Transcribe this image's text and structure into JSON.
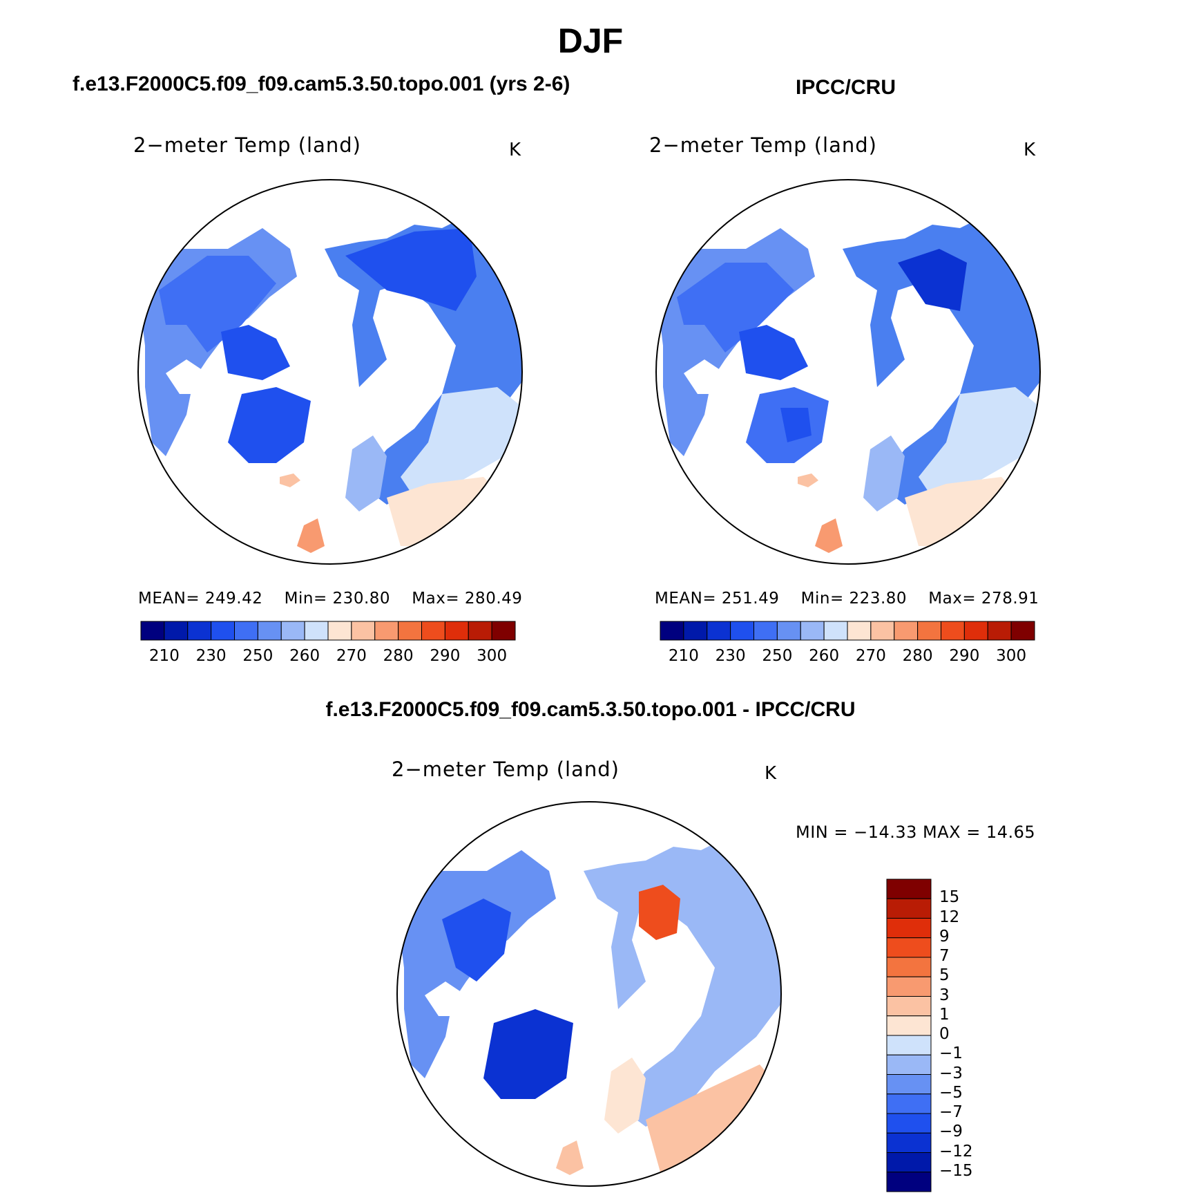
{
  "header": {
    "season": "DJF",
    "left_panel_title": "f.e13.F2000C5.f09_f09.cam5.3.50.topo.001 (yrs 2-6)",
    "right_panel_title": "IPCC/CRU",
    "diff_panel_title": "f.e13.F2000C5.f09_f09.cam5.3.50.topo.001 - IPCC/CRU"
  },
  "panels": {
    "model": {
      "variable": "2−meter Temp (land)",
      "units": "K",
      "stats": {
        "mean_label": "MEAN=",
        "mean": "249.42",
        "min_label": "Min=",
        "min": "230.80",
        "max_label": "Max=",
        "max": "280.49"
      }
    },
    "obs": {
      "variable": "2−meter Temp (land)",
      "units": "K",
      "stats": {
        "mean_label": "MEAN=",
        "mean": "251.49",
        "min_label": "Min=",
        "min": "223.80",
        "max_label": "Max=",
        "max": "278.91"
      }
    },
    "diff": {
      "variable": "2−meter Temp (land)",
      "units": "K",
      "range_text": "MIN = −14.33 MAX =   14.65"
    }
  },
  "colorbars": {
    "absolute": {
      "colors": [
        "#00007f",
        "#0019aa",
        "#0b32d2",
        "#1f50ee",
        "#3f6ff4",
        "#6791f3",
        "#9ab8f6",
        "#cfe2fb",
        "#fde5d3",
        "#fbc2a3",
        "#f89a70",
        "#f3743f",
        "#ee4d1d",
        "#df2e0a",
        "#b91c05",
        "#7f0000"
      ],
      "labels": [
        "210",
        "230",
        "250",
        "260",
        "270",
        "280",
        "290",
        "300"
      ]
    },
    "difference": {
      "colors": [
        "#7f0000",
        "#b91c05",
        "#df2e0a",
        "#ee4d1d",
        "#f3743f",
        "#f89a70",
        "#fbc2a3",
        "#fde5d3",
        "#cfe2fb",
        "#9ab8f6",
        "#6791f3",
        "#3f6ff4",
        "#1f50ee",
        "#0b32d2",
        "#0019aa",
        "#00007f"
      ],
      "labels": [
        "15",
        "12",
        "9",
        "7",
        "5",
        "3",
        "1",
        "0",
        "−1",
        "−3",
        "−5",
        "−7",
        "−9",
        "−12",
        "−15"
      ]
    }
  }
}
